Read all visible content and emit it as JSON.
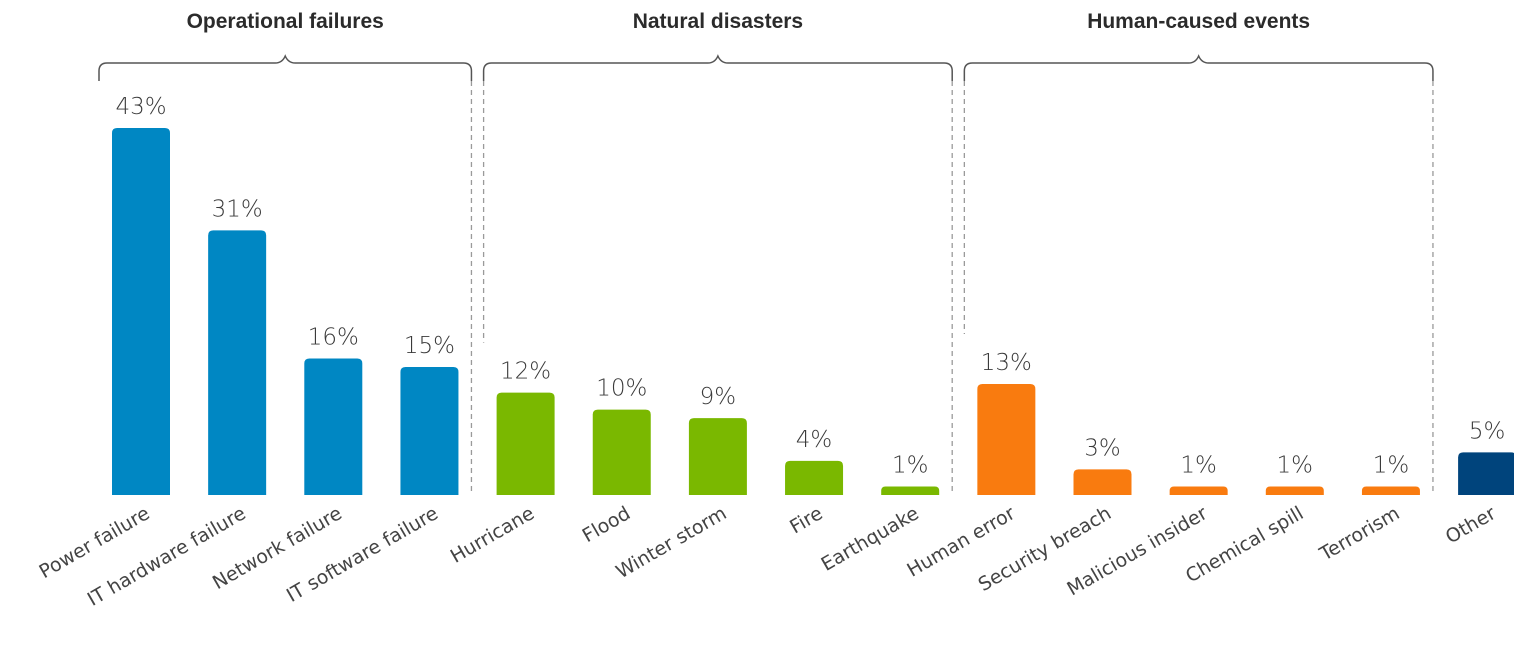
{
  "chart_data": {
    "type": "bar",
    "groups": [
      {
        "label": "Operational failures",
        "color": "#0087c3",
        "start": 0,
        "end": 3
      },
      {
        "label": "Natural disasters",
        "color": "#7ab800",
        "start": 4,
        "end": 8
      },
      {
        "label": "Human-caused events",
        "color": "#f97b0f",
        "start": 9,
        "end": 13
      }
    ],
    "categories": [
      "Power failure",
      "IT hardware failure",
      "Network failure",
      "IT software failure",
      "Hurricane",
      "Flood",
      "Winter storm",
      "Fire",
      "Earthquake",
      "Human error",
      "Security breach",
      "Malicious insider",
      "Chemical spill",
      "Terrorism",
      "Other"
    ],
    "values": [
      43,
      31,
      16,
      15,
      12,
      10,
      9,
      4,
      1,
      13,
      3,
      1,
      1,
      1,
      5
    ],
    "value_labels": [
      "43%",
      "31%",
      "16%",
      "15%",
      "12%",
      "10%",
      "9%",
      "4%",
      "1%",
      "13%",
      "3%",
      "1%",
      "1%",
      "1%",
      "5%"
    ],
    "colors": [
      "#0087c3",
      "#0087c3",
      "#0087c3",
      "#0087c3",
      "#7ab800",
      "#7ab800",
      "#7ab800",
      "#7ab800",
      "#7ab800",
      "#f97b0f",
      "#f97b0f",
      "#f97b0f",
      "#f97b0f",
      "#f97b0f",
      "#00447c"
    ],
    "ylim": [
      0,
      43
    ],
    "grid": false,
    "legend": "none"
  }
}
